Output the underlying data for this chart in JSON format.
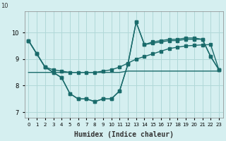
{
  "xlabel": "Humidex (Indice chaleur)",
  "ylabel": "",
  "background_color": "#d5eff0",
  "line_color": "#1a6b6b",
  "grid_color": "#b0d8d8",
  "xlim": [
    0,
    23
  ],
  "ylim": [
    6.8,
    10.8
  ],
  "yticks": [
    7,
    8,
    9,
    10
  ],
  "xticks": [
    0,
    1,
    2,
    3,
    4,
    5,
    6,
    7,
    8,
    9,
    10,
    11,
    12,
    13,
    14,
    15,
    16,
    17,
    18,
    19,
    20,
    21,
    22,
    23
  ],
  "series1": [
    9.7,
    9.2,
    8.7,
    8.5,
    8.3,
    7.7,
    7.5,
    7.5,
    7.4,
    7.5,
    7.5,
    7.8,
    8.8,
    10.4,
    9.55,
    9.6,
    9.65,
    9.7,
    9.7,
    9.75,
    9.75,
    9.75,
    9.1,
    8.6
  ],
  "series2": [
    9.7,
    9.2,
    8.7,
    8.5,
    8.3,
    7.7,
    7.5,
    7.5,
    7.4,
    7.5,
    7.5,
    7.8,
    8.8,
    10.4,
    9.55,
    9.65,
    9.7,
    9.75,
    9.75,
    9.8,
    9.8,
    9.75,
    9.1,
    8.6
  ],
  "series3_flat": [
    8.5,
    8.5,
    8.5,
    8.5,
    8.5,
    8.5,
    8.5,
    8.5,
    8.5,
    8.5,
    8.5,
    8.5,
    8.55,
    8.55,
    8.55,
    8.55,
    8.55,
    8.55,
    8.55,
    8.55,
    8.55,
    8.55,
    8.55,
    8.55
  ],
  "series_rising": [
    9.7,
    9.2,
    8.7,
    8.6,
    8.55,
    8.5,
    8.5,
    8.5,
    8.5,
    8.55,
    8.6,
    8.7,
    8.85,
    9.0,
    9.1,
    9.2,
    9.3,
    9.4,
    9.45,
    9.5,
    9.52,
    9.54,
    9.55,
    8.6
  ],
  "x": [
    0,
    1,
    2,
    3,
    4,
    5,
    6,
    7,
    8,
    9,
    10,
    11,
    12,
    13,
    14,
    15,
    16,
    17,
    18,
    19,
    20,
    21,
    22,
    23
  ]
}
